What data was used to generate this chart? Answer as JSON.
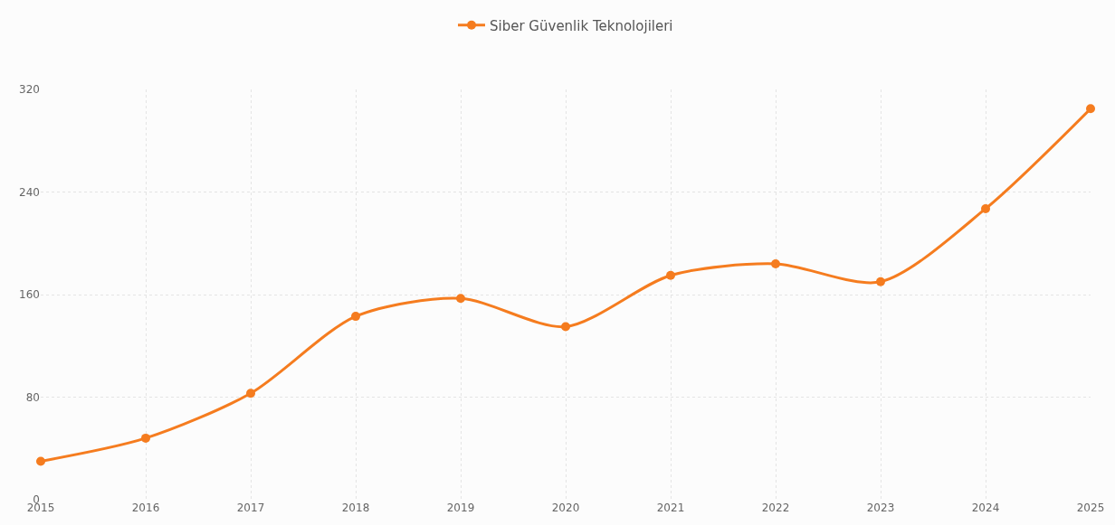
{
  "chart_data": {
    "type": "line",
    "categories": [
      "2015",
      "2016",
      "2017",
      "2018",
      "2019",
      "2020",
      "2021",
      "2022",
      "2023",
      "2024",
      "2025"
    ],
    "series": [
      {
        "name": "Siber Güvenlik Teknolojileri",
        "color": "#f57c1f",
        "values": [
          30,
          48,
          83,
          143,
          157,
          135,
          175,
          184,
          170,
          227,
          305
        ]
      }
    ],
    "ylim": [
      0,
      320
    ],
    "yticks": [
      0,
      80,
      160,
      240,
      320
    ],
    "grid": true,
    "legend": "top",
    "marker": "circle",
    "line_style": "solid"
  }
}
